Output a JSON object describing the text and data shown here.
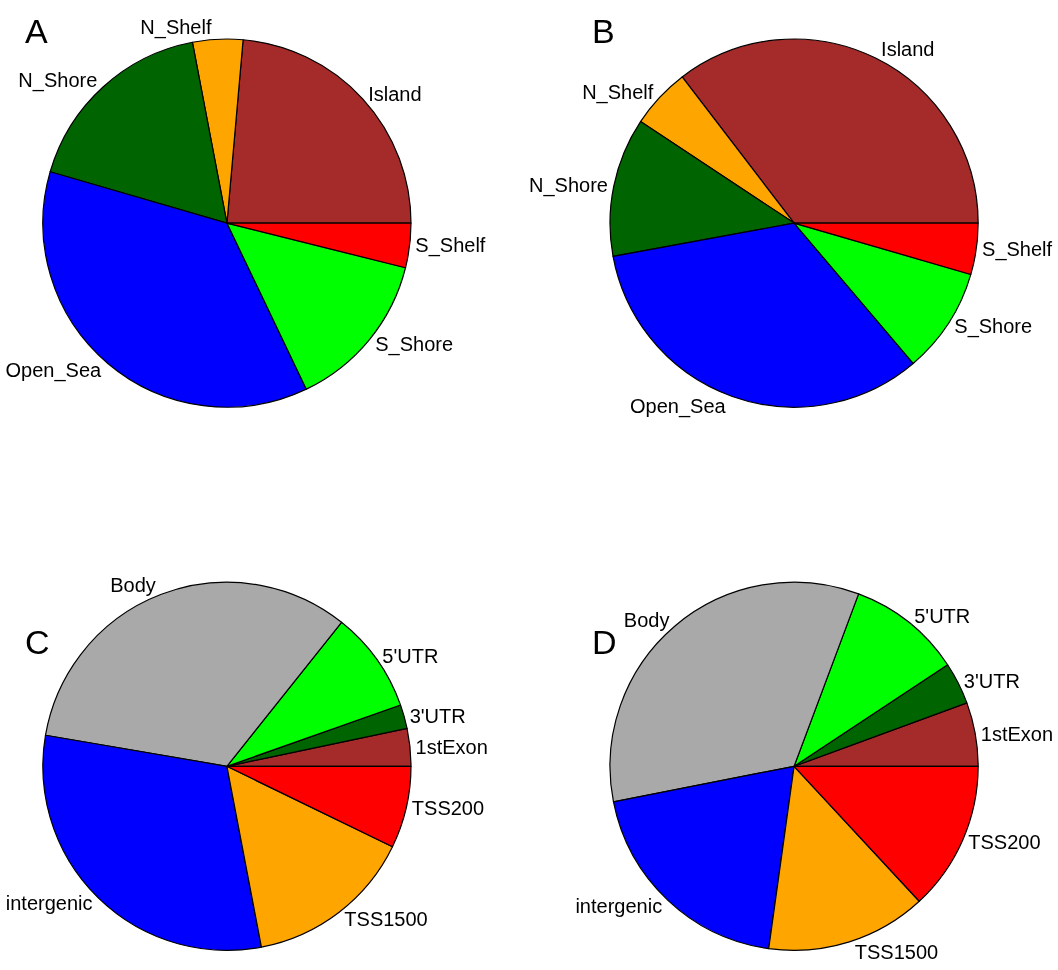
{
  "chart_data": [
    {
      "type": "pie",
      "title": "A",
      "categories": [
        "Island",
        "N_Shelf",
        "N_Shore",
        "Open_Sea",
        "S_Shore",
        "S_Shelf"
      ],
      "values": [
        23.6,
        4.4,
        17.5,
        36.6,
        14.0,
        3.9
      ],
      "colors": [
        "#a52a2a",
        "#ffa500",
        "#006400",
        "#0000ff",
        "#00ff00",
        "#ff0000"
      ]
    },
    {
      "type": "pie",
      "title": "B",
      "categories": [
        "Island",
        "N_Shelf",
        "N_Shore",
        "Open_Sea",
        "S_Shore",
        "S_Shelf"
      ],
      "values": [
        35.4,
        5.3,
        12.2,
        33.3,
        9.3,
        4.5
      ],
      "colors": [
        "#a52a2a",
        "#ffa500",
        "#006400",
        "#0000ff",
        "#00ff00",
        "#ff0000"
      ]
    },
    {
      "type": "pie",
      "title": "C",
      "categories": [
        "1stExon",
        "3'UTR",
        "5'UTR",
        "Body",
        "intergenic",
        "TSS1500",
        "TSS200"
      ],
      "values": [
        3.3,
        2.1,
        8.9,
        33.0,
        30.7,
        14.8,
        7.2
      ],
      "colors": [
        "#a52a2a",
        "#006400",
        "#00ff00",
        "#a9a9a9",
        "#0000ff",
        "#ffa500",
        "#ff0000"
      ]
    },
    {
      "type": "pie",
      "title": "D",
      "categories": [
        "1stExon",
        "3'UTR",
        "5'UTR",
        "Body",
        "intergenic",
        "TSS1500",
        "TSS200"
      ],
      "values": [
        5.6,
        3.7,
        10.0,
        33.8,
        19.7,
        14.1,
        13.1
      ],
      "colors": [
        "#a52a2a",
        "#006400",
        "#00ff00",
        "#a9a9a9",
        "#0000ff",
        "#ffa500",
        "#ff0000"
      ]
    }
  ]
}
